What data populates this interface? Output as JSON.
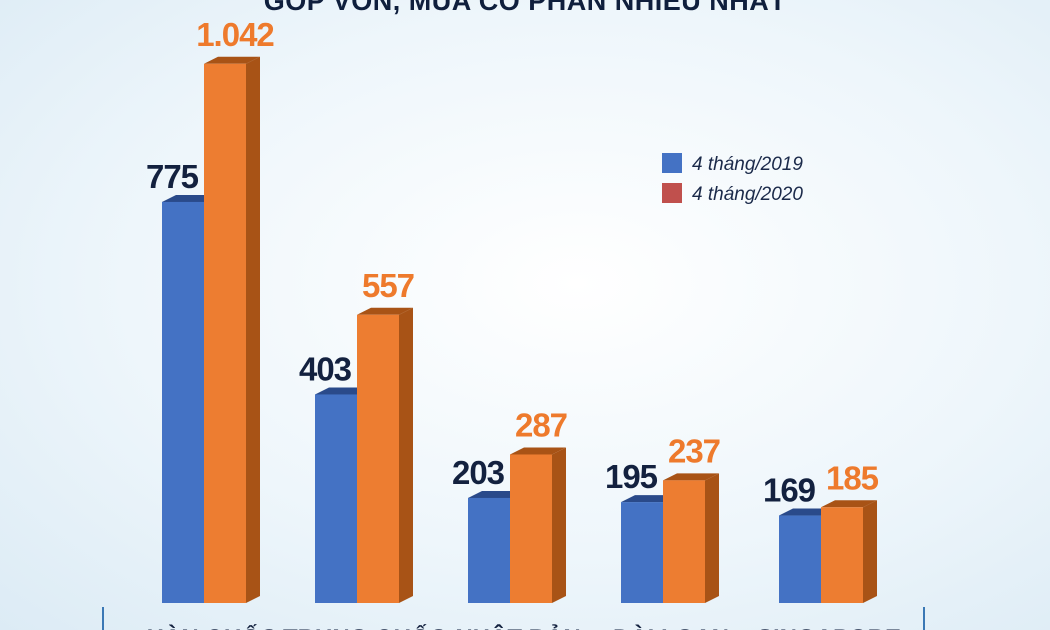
{
  "chart_data": {
    "type": "bar",
    "title": "GÓP VỐN, MUA CỔ PHẦN NHIỀU NHẤT",
    "categories": [
      "HÀN QUỐC",
      "TRUNG QUỐC",
      "NHẬT BẢN",
      "ĐÀI LOAN",
      "SINGAPORE"
    ],
    "series": [
      {
        "name": "4 tháng/2019",
        "values": [
          775,
          403,
          203,
          195,
          169
        ],
        "labels": [
          "775",
          "403",
          "203",
          "195",
          "169"
        ],
        "color": "#4472c4",
        "side_color": "#2a4a8a"
      },
      {
        "name": "4 tháng/2020",
        "values": [
          1042,
          557,
          287,
          237,
          185
        ],
        "labels": [
          "1.042",
          "557",
          "287",
          "237",
          "185"
        ],
        "color": "#ed7d31",
        "side_color": "#a85316"
      }
    ],
    "legend_swatch_colors": [
      "#4472c4",
      "#c0504d"
    ],
    "value_label_colors": [
      "#13213f",
      "#ee7a2c"
    ],
    "legend_position": "top-right",
    "grid": false,
    "ylim": [
      0,
      1100
    ]
  }
}
